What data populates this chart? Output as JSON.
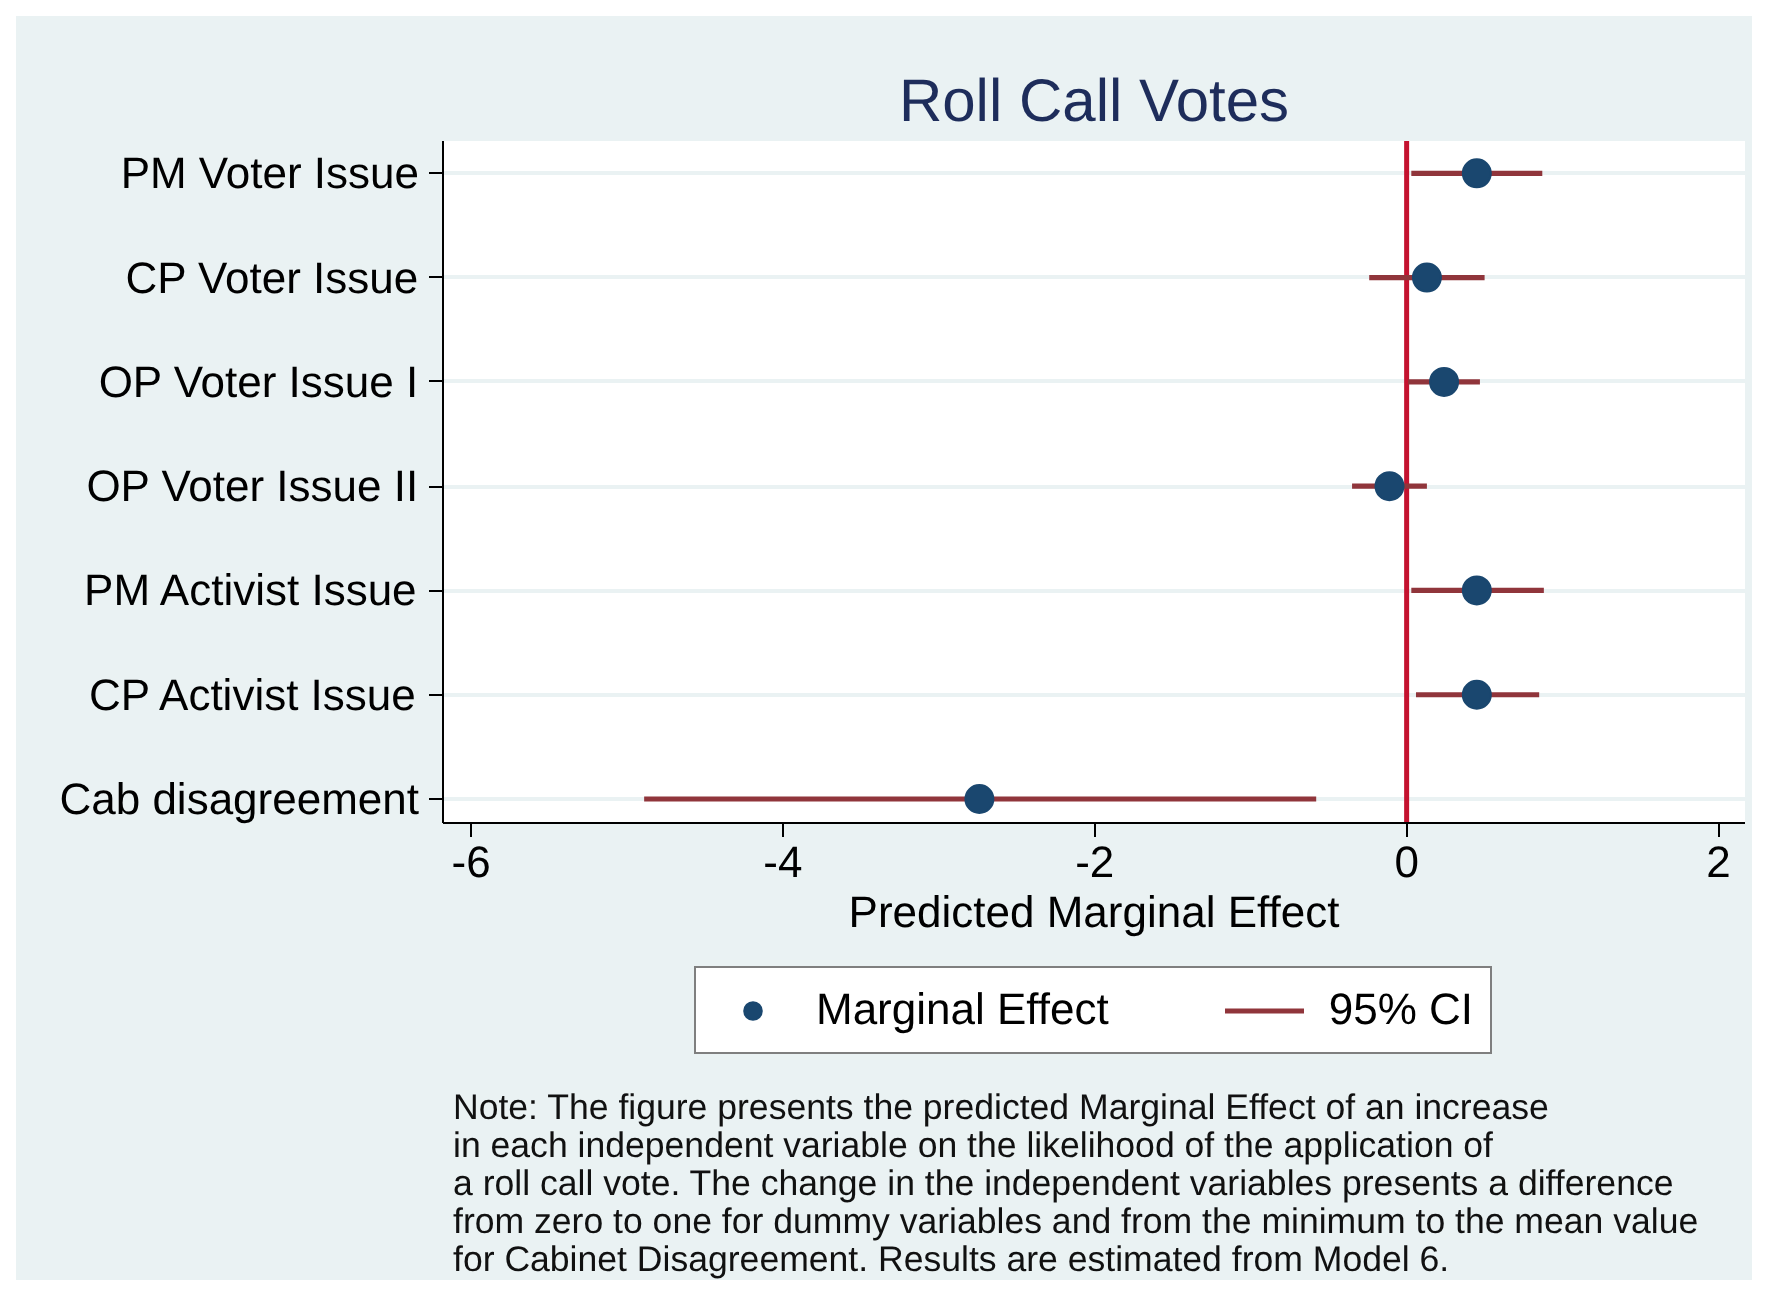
{
  "chart_data": {
    "type": "scatter",
    "title": "Roll Call Votes",
    "xlabel": "Predicted Marginal Effect",
    "orientation": "horizontal",
    "categories": [
      "PM Voter Issue",
      "CP Voter Issue",
      "OP Voter Issue I",
      "OP Voter Issue II",
      "PM Activist Issue",
      "CP Activist Issue",
      "Cab disagreement"
    ],
    "series": [
      {
        "name": "Marginal Effect",
        "color": "#1a476f",
        "values": [
          0.45,
          0.13,
          0.24,
          -0.11,
          0.45,
          0.45,
          -2.74
        ]
      },
      {
        "name": "95% CI",
        "type": "bar",
        "color": "#90353b",
        "base": [
          0.03,
          -0.24,
          0.01,
          -0.35,
          0.03,
          0.06,
          -4.89
        ],
        "values": [
          0.84,
          0.74,
          0.46,
          0.48,
          0.85,
          0.79,
          4.31
        ]
      }
    ],
    "xlim": [
      -6.18,
      2.17
    ],
    "xticks": [
      -6,
      -4,
      -2,
      0,
      2
    ],
    "ref_lines": [
      {
        "axis": "x",
        "value": 0,
        "color": "#c4122f"
      }
    ],
    "grid": "y",
    "legend": "bottom",
    "marker": "circle",
    "annotations": [
      "Note: The figure presents the predicted Marginal Effect of an increase\nin each independent variable on the likelihood of the application of\na roll call vote. The change in the independent variables presents a difference\nfrom zero to one for dummy variables and from the minimum to the mean value\nfor Cabinet Disagreement. Results are estimated from Model 6."
    ]
  }
}
